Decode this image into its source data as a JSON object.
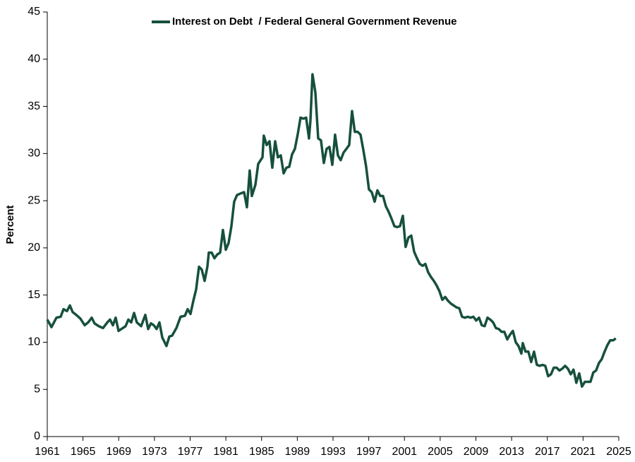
{
  "chart_data": {
    "type": "line",
    "y_label": "Percent",
    "legend_position": "top-center",
    "grid": false,
    "xlim": [
      1961,
      2025
    ],
    "xticks": [
      1961,
      1965,
      1969,
      1973,
      1977,
      1981,
      1985,
      1989,
      1993,
      1997,
      2001,
      2005,
      2009,
      2013,
      2017,
      2021,
      2025
    ],
    "ylim": [
      0,
      45
    ],
    "yticks": [
      0,
      5,
      10,
      15,
      20,
      25,
      30,
      35,
      40,
      45
    ],
    "x": [
      1961.0,
      1961.47,
      1962.03,
      1962.5,
      1962.82,
      1963.21,
      1963.53,
      1963.84,
      1964.24,
      1964.71,
      1965.19,
      1965.58,
      1965.98,
      1966.29,
      1966.77,
      1967.24,
      1967.72,
      1968.03,
      1968.35,
      1968.66,
      1968.98,
      1969.45,
      1969.77,
      1970.08,
      1970.4,
      1970.72,
      1971.03,
      1971.51,
      1971.98,
      1972.3,
      1972.61,
      1972.93,
      1973.24,
      1973.56,
      1973.88,
      1974.35,
      1974.67,
      1974.98,
      1975.46,
      1975.93,
      1976.41,
      1976.72,
      1977.04,
      1977.36,
      1977.67,
      1977.99,
      1978.3,
      1978.62,
      1978.93,
      1979.09,
      1979.41,
      1979.72,
      1980.04,
      1980.36,
      1980.67,
      1980.99,
      1981.3,
      1981.62,
      1981.93,
      1982.25,
      1982.73,
      1983.04,
      1983.36,
      1983.67,
      1983.91,
      1984.31,
      1984.62,
      1985.1,
      1985.25,
      1985.57,
      1985.89,
      1986.2,
      1986.52,
      1986.83,
      1987.15,
      1987.47,
      1987.78,
      1988.1,
      1988.41,
      1988.73,
      1989.04,
      1989.36,
      1989.68,
      1989.99,
      1990.31,
      1990.47,
      1990.7,
      1991.02,
      1991.34,
      1991.65,
      1991.97,
      1992.28,
      1992.6,
      1992.92,
      1993.23,
      1993.55,
      1993.86,
      1994.18,
      1994.5,
      1994.81,
      1995.13,
      1995.44,
      1995.76,
      1996.08,
      1996.39,
      1996.71,
      1997.02,
      1997.34,
      1997.66,
      1997.97,
      1998.29,
      1998.6,
      1998.92,
      1999.24,
      1999.55,
      1999.87,
      2000.18,
      2000.5,
      2000.82,
      2001.13,
      2001.45,
      2001.76,
      2002.08,
      2002.4,
      2002.71,
      2003.03,
      2003.34,
      2003.66,
      2003.98,
      2004.29,
      2004.61,
      2004.92,
      2005.24,
      2005.56,
      2005.87,
      2006.19,
      2006.5,
      2006.82,
      2007.14,
      2007.45,
      2007.77,
      2008.08,
      2008.4,
      2008.72,
      2009.03,
      2009.35,
      2009.66,
      2009.98,
      2010.3,
      2010.61,
      2010.93,
      2011.24,
      2011.56,
      2011.88,
      2012.19,
      2012.51,
      2012.82,
      2013.14,
      2013.46,
      2013.77,
      2014.09,
      2014.25,
      2014.56,
      2014.88,
      2015.19,
      2015.51,
      2015.83,
      2016.14,
      2016.46,
      2016.77,
      2017.09,
      2017.41,
      2017.72,
      2018.04,
      2018.35,
      2018.67,
      2018.99,
      2019.3,
      2019.62,
      2019.93,
      2020.25,
      2020.57,
      2020.88,
      2021.2,
      2021.51,
      2021.83,
      2022.15,
      2022.46,
      2022.78,
      2023.09,
      2023.41,
      2023.73,
      2024.04,
      2024.36,
      2024.67
    ],
    "series": [
      {
        "name": "Interest on Debt  / Federal General Government Revenue",
        "color": "#16503c",
        "values": [
          12.4,
          11.6,
          12.6,
          12.7,
          13.5,
          13.3,
          13.9,
          13.2,
          12.9,
          12.5,
          11.8,
          12.1,
          12.6,
          12.0,
          11.7,
          11.5,
          12.1,
          12.4,
          11.8,
          12.6,
          11.2,
          11.5,
          11.7,
          12.4,
          12.1,
          13.1,
          12.1,
          11.7,
          12.9,
          11.4,
          12.0,
          11.8,
          11.4,
          12.1,
          10.5,
          9.6,
          10.6,
          10.7,
          11.5,
          12.7,
          12.8,
          13.5,
          13.0,
          14.4,
          15.6,
          18.0,
          17.7,
          16.5,
          18.0,
          19.5,
          19.5,
          18.9,
          19.3,
          19.5,
          21.9,
          19.8,
          20.5,
          22.3,
          24.9,
          25.6,
          25.8,
          25.9,
          24.3,
          28.2,
          25.5,
          26.7,
          28.9,
          29.6,
          31.9,
          30.9,
          31.3,
          28.5,
          31.3,
          29.6,
          29.8,
          27.9,
          28.5,
          28.6,
          29.9,
          30.5,
          32.0,
          33.8,
          33.7,
          33.8,
          31.6,
          33.5,
          38.4,
          36.5,
          31.6,
          31.4,
          29.0,
          30.5,
          30.7,
          28.8,
          32.0,
          29.8,
          29.3,
          30.1,
          30.5,
          30.9,
          34.5,
          32.3,
          32.3,
          32.0,
          30.4,
          28.6,
          26.2,
          25.9,
          24.9,
          26.1,
          25.5,
          25.5,
          24.4,
          23.8,
          23.1,
          22.3,
          22.2,
          22.3,
          23.4,
          20.1,
          21.1,
          21.3,
          19.6,
          18.9,
          18.3,
          18.1,
          18.3,
          17.4,
          16.9,
          16.5,
          16.0,
          15.4,
          14.5,
          14.8,
          14.4,
          14.1,
          13.9,
          13.7,
          13.6,
          12.7,
          12.6,
          12.7,
          12.6,
          12.7,
          12.3,
          12.6,
          11.8,
          11.7,
          12.6,
          12.4,
          12.1,
          11.5,
          11.4,
          11.1,
          11.1,
          10.3,
          10.8,
          11.2,
          10.0,
          9.6,
          8.8,
          9.9,
          9.0,
          9.0,
          7.9,
          9.0,
          7.6,
          7.5,
          7.6,
          7.5,
          6.4,
          6.6,
          7.3,
          7.3,
          7.0,
          7.2,
          7.5,
          7.2,
          6.6,
          7.1,
          5.7,
          6.7,
          5.3,
          5.8,
          5.8,
          5.8,
          6.8,
          7.0,
          7.8,
          8.2,
          9.0,
          9.7,
          10.2,
          10.2,
          10.4
        ]
      }
    ]
  }
}
